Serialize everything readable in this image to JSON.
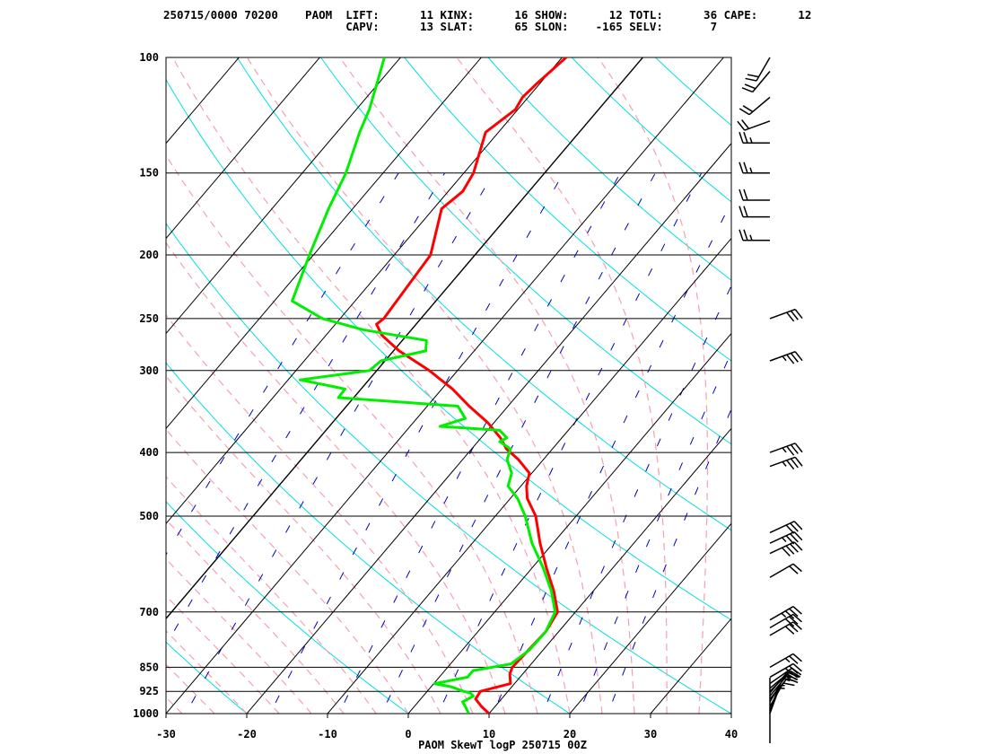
{
  "header": {
    "line1": "250715/0000 70200    PAOM  LIFT:      11 KINX:      16 SHOW:      12 TOTL:      36 CAPE:      12",
    "line2": "                           CAPV:      13 SLAT:      65 SLON:    -165 SELV:       7"
  },
  "chart_data": {
    "type": "line",
    "title": "PAOM SkewT logP 250715 00Z",
    "xlim": [
      -30,
      40
    ],
    "ylim": [
      1000,
      100
    ],
    "y_scale": "log",
    "x_ticks": [
      "-30",
      "-20",
      "-10",
      "0",
      "10",
      "20",
      "30",
      "40"
    ],
    "y_ticks": [
      "100",
      "150",
      "200",
      "250",
      "300",
      "400",
      "500",
      "700",
      "850",
      "925",
      "1000"
    ],
    "colors": {
      "temperature": "#ff0000",
      "dewpoint": "#00ee00",
      "isotherm": "#000000",
      "dry_adiabat": "#00e0e0",
      "moist_adiabat": "#f4a0b0",
      "mixing_ratio": "#0000cc",
      "isobar": "#000000"
    },
    "series": [
      {
        "color": "#ff0000",
        "points": [
          [
            1000,
            10.0
          ],
          [
            975,
            8.3
          ],
          [
            950,
            6.8
          ],
          [
            925,
            6.6
          ],
          [
            900,
            9.5
          ],
          [
            870,
            8.4
          ],
          [
            850,
            8.0
          ],
          [
            800,
            8.2
          ],
          [
            750,
            8.4
          ],
          [
            700,
            7.8
          ],
          [
            650,
            5.1
          ],
          [
            600,
            1.8
          ],
          [
            550,
            -1.6
          ],
          [
            500,
            -5.0
          ],
          [
            470,
            -7.9
          ],
          [
            450,
            -9.3
          ],
          [
            430,
            -10.3
          ],
          [
            410,
            -13.1
          ],
          [
            395,
            -15.7
          ],
          [
            380,
            -17.6
          ],
          [
            360,
            -20.8
          ],
          [
            340,
            -24.8
          ],
          [
            320,
            -28.7
          ],
          [
            300,
            -33.5
          ],
          [
            280,
            -39.3
          ],
          [
            265,
            -43.1
          ],
          [
            255,
            -44.9
          ],
          [
            250,
            -44.6
          ],
          [
            200,
            -45.5
          ],
          [
            170,
            -49.0
          ],
          [
            160,
            -48.2
          ],
          [
            150,
            -48.8
          ],
          [
            130,
            -51.6
          ],
          [
            120,
            -50.3
          ],
          [
            115,
            -50.7
          ],
          [
            110,
            -50.4
          ],
          [
            100,
            -49.5
          ]
        ]
      },
      {
        "color": "#00ee00",
        "points": [
          [
            1000,
            7.5
          ],
          [
            975,
            6.3
          ],
          [
            960,
            5.5
          ],
          [
            940,
            6.2
          ],
          [
            930,
            5.5
          ],
          [
            925,
            4.5
          ],
          [
            910,
            2.5
          ],
          [
            900,
            0.1
          ],
          [
            880,
            3.5
          ],
          [
            860,
            3.5
          ],
          [
            840,
            7.5
          ],
          [
            800,
            8.3
          ],
          [
            750,
            8.4
          ],
          [
            700,
            7.5
          ],
          [
            650,
            4.8
          ],
          [
            600,
            1.4
          ],
          [
            550,
            -2.6
          ],
          [
            500,
            -6.3
          ],
          [
            470,
            -9.1
          ],
          [
            450,
            -11.6
          ],
          [
            430,
            -12.5
          ],
          [
            410,
            -14.5
          ],
          [
            395,
            -15.2
          ],
          [
            385,
            -17.3
          ],
          [
            380,
            -16.8
          ],
          [
            370,
            -18.5
          ],
          [
            365,
            -26.3
          ],
          [
            355,
            -24.0
          ],
          [
            340,
            -26.2
          ],
          [
            330,
            -41.9
          ],
          [
            320,
            -42.0
          ],
          [
            310,
            -48.5
          ],
          [
            300,
            -40.9
          ],
          [
            290,
            -40.5
          ],
          [
            280,
            -36.0
          ],
          [
            270,
            -37.0
          ],
          [
            260,
            -46.0
          ],
          [
            250,
            -52.2
          ],
          [
            235,
            -57.8
          ],
          [
            200,
            -60.5
          ],
          [
            170,
            -63.0
          ],
          [
            150,
            -64.6
          ],
          [
            130,
            -67.2
          ],
          [
            120,
            -68.4
          ],
          [
            110,
            -70.1
          ],
          [
            100,
            -72.0
          ]
        ]
      }
    ],
    "wind_barbs": [
      {
        "p": 1000,
        "dir": 20,
        "spd": 5
      },
      {
        "p": 990,
        "dir": 20,
        "spd": 5
      },
      {
        "p": 975,
        "dir": 30,
        "spd": 10
      },
      {
        "p": 960,
        "dir": 30,
        "spd": 10
      },
      {
        "p": 950,
        "dir": 40,
        "spd": 10
      },
      {
        "p": 940,
        "dir": 40,
        "spd": 15
      },
      {
        "p": 930,
        "dir": 40,
        "spd": 15
      },
      {
        "p": 925,
        "dir": 45,
        "spd": 15
      },
      {
        "p": 915,
        "dir": 50,
        "spd": 20
      },
      {
        "p": 900,
        "dir": 55,
        "spd": 20
      },
      {
        "p": 880,
        "dir": 60,
        "spd": 25
      },
      {
        "p": 850,
        "dir": 60,
        "spd": 25
      },
      {
        "p": 760,
        "dir": 60,
        "spd": 30
      },
      {
        "p": 740,
        "dir": 60,
        "spd": 30
      },
      {
        "p": 720,
        "dir": 60,
        "spd": 35
      },
      {
        "p": 620,
        "dir": 60,
        "spd": 20
      },
      {
        "p": 570,
        "dir": 65,
        "spd": 40
      },
      {
        "p": 550,
        "dir": 65,
        "spd": 35
      },
      {
        "p": 530,
        "dir": 65,
        "spd": 30
      },
      {
        "p": 420,
        "dir": 70,
        "spd": 35
      },
      {
        "p": 400,
        "dir": 70,
        "spd": 35
      },
      {
        "p": 290,
        "dir": 70,
        "spd": 35
      },
      {
        "p": 250,
        "dir": 70,
        "spd": 30
      },
      {
        "p": 190,
        "dir": 270,
        "spd": 25
      },
      {
        "p": 175,
        "dir": 270,
        "spd": 20
      },
      {
        "p": 165,
        "dir": 270,
        "spd": 20
      },
      {
        "p": 150,
        "dir": 270,
        "spd": 25
      },
      {
        "p": 135,
        "dir": 270,
        "spd": 25
      },
      {
        "p": 125,
        "dir": 250,
        "spd": 20
      },
      {
        "p": 115,
        "dir": 230,
        "spd": 20
      },
      {
        "p": 105,
        "dir": 220,
        "spd": 20
      },
      {
        "p": 100,
        "dir": 210,
        "spd": 20
      }
    ]
  }
}
